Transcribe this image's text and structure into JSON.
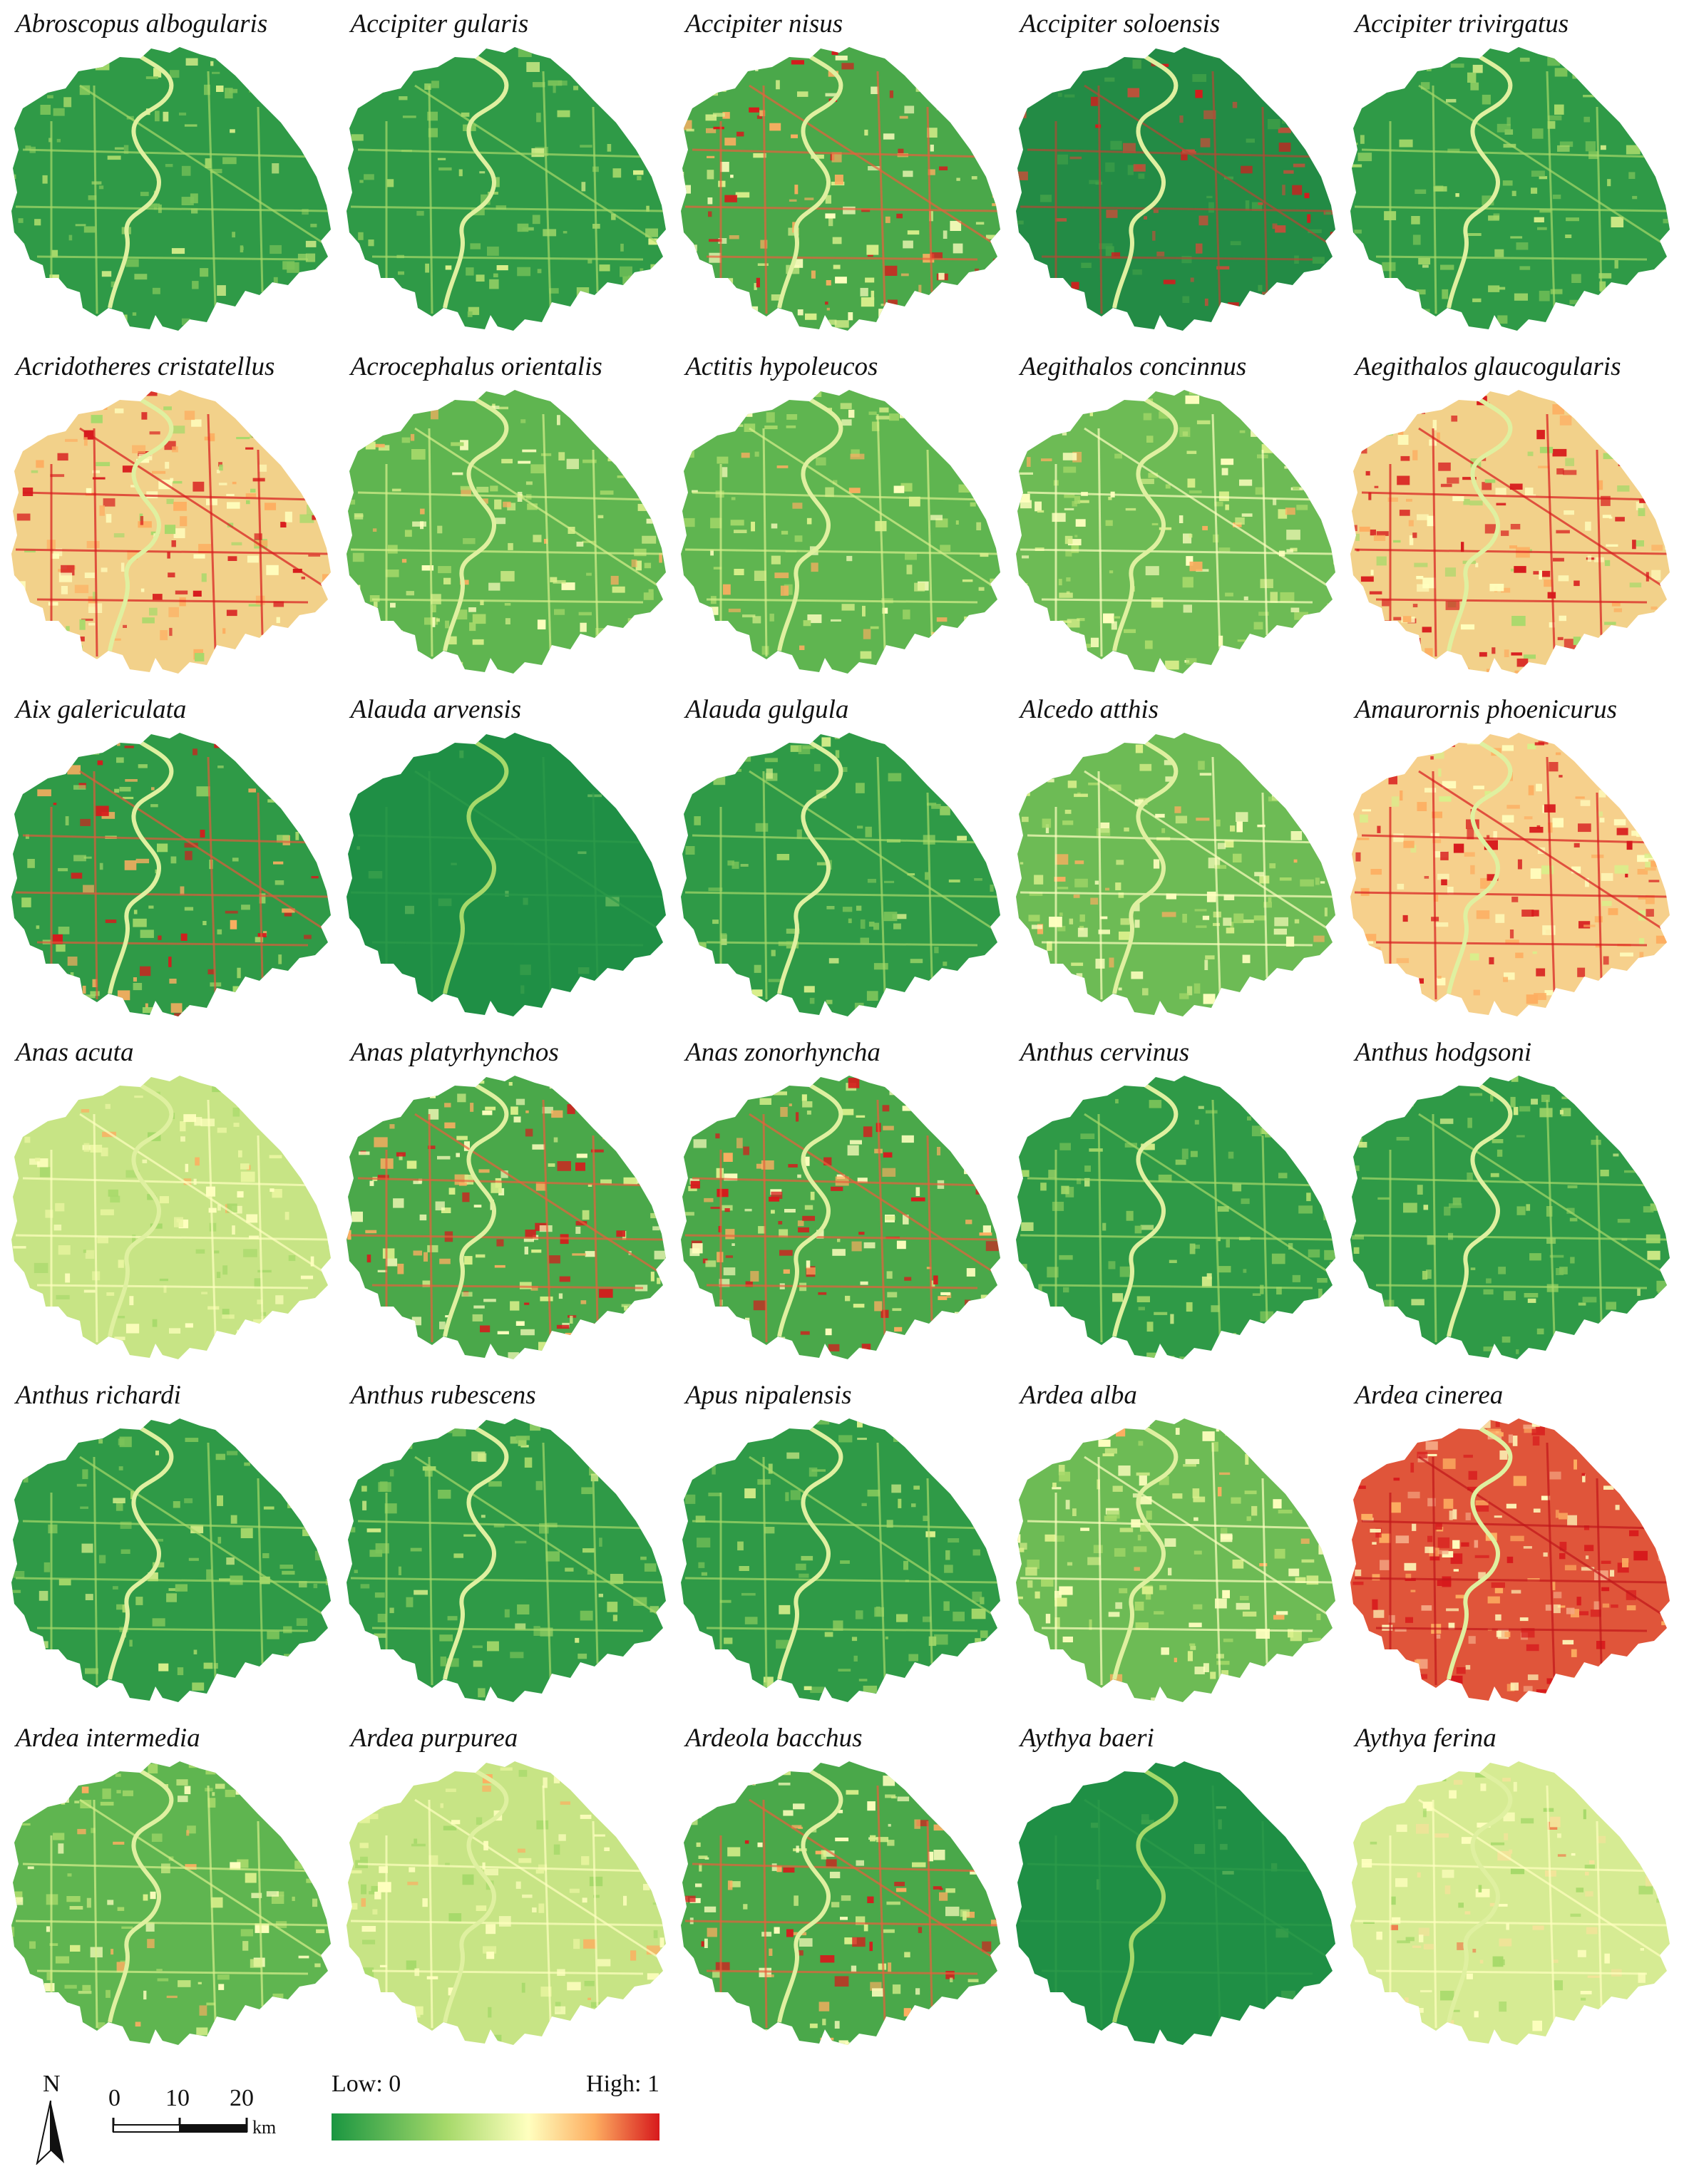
{
  "panels": [
    {
      "title": "Abroscopus albogularis",
      "palette": "g1"
    },
    {
      "title": "Accipiter gularis",
      "palette": "g1"
    },
    {
      "title": "Accipiter nisus",
      "palette": "mix2"
    },
    {
      "title": "Accipiter soloensis",
      "palette": "dark"
    },
    {
      "title": "Accipiter trivirgatus",
      "palette": "g1"
    },
    {
      "title": "Acridotheres cristatellus",
      "palette": "hot"
    },
    {
      "title": "Acrocephalus orientalis",
      "palette": "g2"
    },
    {
      "title": "Actitis hypoleucos",
      "palette": "g2"
    },
    {
      "title": "Aegithalos concinnus",
      "palette": "g3"
    },
    {
      "title": "Aegithalos glaucogularis",
      "palette": "hot"
    },
    {
      "title": "Aix galericulata",
      "palette": "mix1"
    },
    {
      "title": "Alauda arvensis",
      "palette": "flat"
    },
    {
      "title": "Alauda gulgula",
      "palette": "g1"
    },
    {
      "title": "Alcedo atthis",
      "palette": "g3"
    },
    {
      "title": "Amaurornis phoenicurus",
      "palette": "hot2"
    },
    {
      "title": "Anas acuta",
      "palette": "pale"
    },
    {
      "title": "Anas platyrhynchos",
      "palette": "mix2"
    },
    {
      "title": "Anas zonorhyncha",
      "palette": "mix2"
    },
    {
      "title": "Anthus cervinus",
      "palette": "g1"
    },
    {
      "title": "Anthus hodgsoni",
      "palette": "g1"
    },
    {
      "title": "Anthus richardi",
      "palette": "g1"
    },
    {
      "title": "Anthus rubescens",
      "palette": "g1"
    },
    {
      "title": "Apus nipalensis",
      "palette": "g1"
    },
    {
      "title": "Ardea alba",
      "palette": "g3"
    },
    {
      "title": "Ardea cinerea",
      "palette": "hot3"
    },
    {
      "title": "Ardea intermedia",
      "palette": "g2"
    },
    {
      "title": "Ardea purpurea",
      "palette": "pale"
    },
    {
      "title": "Ardeola bacchus",
      "palette": "mix2"
    },
    {
      "title": "Aythya baeri",
      "palette": "flat"
    },
    {
      "title": "Aythya ferina",
      "palette": "pale2"
    }
  ],
  "north_arrow": {
    "label": "N"
  },
  "scale_bar": {
    "ticks": [
      "0",
      "10",
      "20"
    ],
    "unit": "km"
  },
  "legend": {
    "low_label": "Low: 0",
    "high_label": "High: 1",
    "colors": [
      "#1a9641",
      "#a6d96a",
      "#ffffbf",
      "#fdae61",
      "#d7191c"
    ]
  }
}
